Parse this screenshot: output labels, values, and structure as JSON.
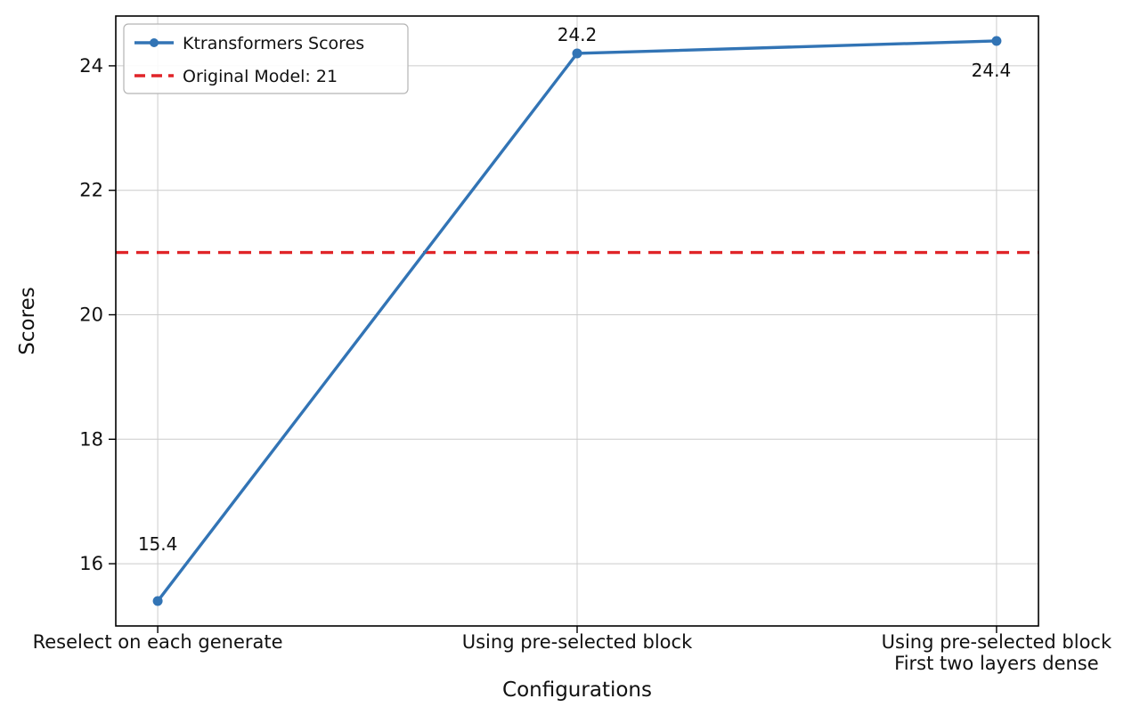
{
  "chart_data": {
    "type": "line",
    "title": "",
    "xlabel": "Configurations",
    "ylabel": "Scores",
    "categories": [
      "Reselect on each generate",
      "Using pre-selected block",
      "Using pre-selected block\nFirst two layers dense"
    ],
    "series": [
      {
        "name": "Ktransformers Scores",
        "values": [
          15.4,
          24.2,
          24.4
        ],
        "color": "#3274b5",
        "marker": "circle",
        "line_style": "solid"
      }
    ],
    "value_labels": [
      "15.4",
      "24.2",
      "24.4"
    ],
    "value_label_positions": [
      "above-far",
      "above",
      "below"
    ],
    "reference_line": {
      "name": "Original Model: 21",
      "value": 21,
      "color": "#e02428",
      "line_style": "dashed"
    },
    "yticks": [
      16,
      18,
      20,
      22,
      24
    ],
    "ylim": [
      15.0,
      24.8
    ],
    "grid": true,
    "legend": {
      "position": "upper-left",
      "entries": [
        "Ktransformers Scores",
        "Original Model: 21"
      ]
    },
    "colors": {
      "grid": "#cccccc",
      "axis": "#000000",
      "tick_text": "#111111",
      "background": "#ffffff",
      "legend_border": "#b5b5b5"
    }
  }
}
